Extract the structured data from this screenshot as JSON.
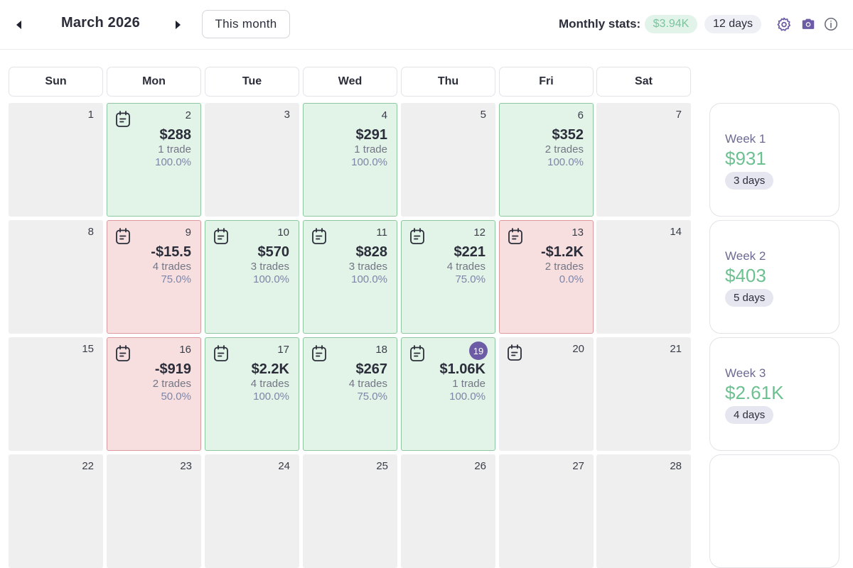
{
  "header": {
    "month_title": "March 2026",
    "prev_icon": "caret-left-icon",
    "next_icon": "caret-right-icon",
    "this_month_label": "This month",
    "stats_label": "Monthly stats:",
    "stats_total": "$3.94K",
    "stats_days": "12 days",
    "icons": [
      "gear-icon",
      "camera-icon",
      "info-icon"
    ]
  },
  "colors": {
    "win_bg": "#e2f3e7",
    "loss_bg": "#f7dfe0",
    "empty_bg": "#efefef",
    "accent": "#6b5ca5",
    "positive_text": "#6cc191"
  },
  "weekdays": [
    "Sun",
    "Mon",
    "Tue",
    "Wed",
    "Thu",
    "Fri",
    "Sat"
  ],
  "weeks": [
    {
      "days": [
        {
          "date": "1",
          "status": "empty"
        },
        {
          "date": "2",
          "status": "win",
          "note": true,
          "pnl": "$288",
          "trades": "1 trade",
          "pct": "100.0%"
        },
        {
          "date": "3",
          "status": "empty"
        },
        {
          "date": "4",
          "status": "win",
          "pnl": "$291",
          "trades": "1 trade",
          "pct": "100.0%"
        },
        {
          "date": "5",
          "status": "empty"
        },
        {
          "date": "6",
          "status": "win",
          "pnl": "$352",
          "trades": "2 trades",
          "pct": "100.0%"
        },
        {
          "date": "7",
          "status": "empty"
        }
      ],
      "summary": {
        "label": "Week 1",
        "amount": "$931",
        "days": "3 days"
      }
    },
    {
      "days": [
        {
          "date": "8",
          "status": "empty"
        },
        {
          "date": "9",
          "status": "loss",
          "note": true,
          "pnl": "-$15.5",
          "trades": "4 trades",
          "pct": "75.0%"
        },
        {
          "date": "10",
          "status": "win",
          "note": true,
          "pnl": "$570",
          "trades": "3 trades",
          "pct": "100.0%"
        },
        {
          "date": "11",
          "status": "win",
          "note": true,
          "pnl": "$828",
          "trades": "3 trades",
          "pct": "100.0%"
        },
        {
          "date": "12",
          "status": "win",
          "note": true,
          "pnl": "$221",
          "trades": "4 trades",
          "pct": "75.0%"
        },
        {
          "date": "13",
          "status": "loss",
          "note": true,
          "pnl": "-$1.2K",
          "trades": "2 trades",
          "pct": "0.0%"
        },
        {
          "date": "14",
          "status": "empty"
        }
      ],
      "summary": {
        "label": "Week 2",
        "amount": "$403",
        "days": "5 days"
      }
    },
    {
      "days": [
        {
          "date": "15",
          "status": "empty"
        },
        {
          "date": "16",
          "status": "loss",
          "note": true,
          "pnl": "-$919",
          "trades": "2 trades",
          "pct": "50.0%"
        },
        {
          "date": "17",
          "status": "win",
          "note": true,
          "pnl": "$2.2K",
          "trades": "4 trades",
          "pct": "100.0%"
        },
        {
          "date": "18",
          "status": "win",
          "note": true,
          "pnl": "$267",
          "trades": "4 trades",
          "pct": "75.0%"
        },
        {
          "date": "19",
          "status": "win",
          "note": true,
          "today": true,
          "pnl": "$1.06K",
          "trades": "1 trade",
          "pct": "100.0%"
        },
        {
          "date": "20",
          "status": "empty",
          "note": true
        },
        {
          "date": "21",
          "status": "empty"
        }
      ],
      "summary": {
        "label": "Week 3",
        "amount": "$2.61K",
        "days": "4 days"
      }
    },
    {
      "days": [
        {
          "date": "22",
          "status": "empty"
        },
        {
          "date": "23",
          "status": "empty"
        },
        {
          "date": "24",
          "status": "empty"
        },
        {
          "date": "25",
          "status": "empty"
        },
        {
          "date": "26",
          "status": "empty"
        },
        {
          "date": "27",
          "status": "empty"
        },
        {
          "date": "28",
          "status": "empty"
        }
      ],
      "summary": null
    }
  ]
}
